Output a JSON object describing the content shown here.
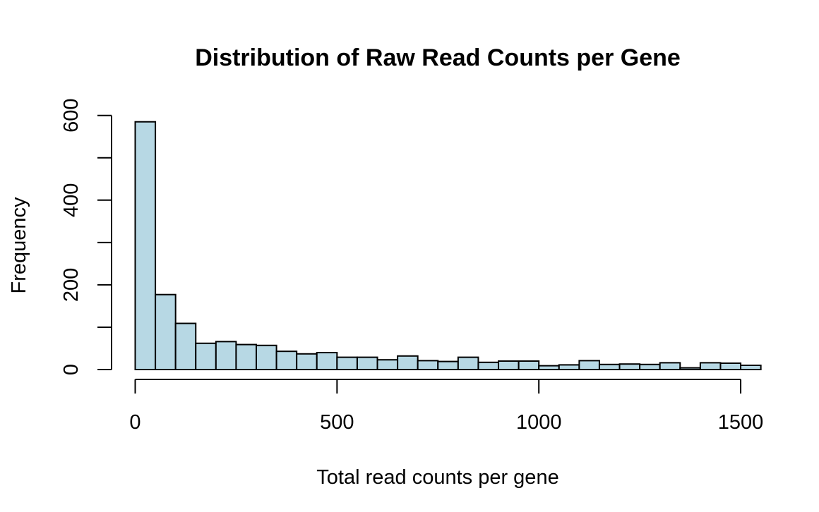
{
  "chart_data": {
    "type": "bar",
    "title": "Distribution of Raw Read Counts per Gene",
    "xlabel": "Total read counts per gene",
    "ylabel": "Frequency",
    "bin_width": 50,
    "x_ticks": [
      0,
      500,
      1000,
      1500
    ],
    "y_ticks": [
      0,
      200,
      400,
      600
    ],
    "xlim": [
      0,
      1550
    ],
    "ylim": [
      0,
      600
    ],
    "grid": false,
    "legend": "none",
    "colors": {
      "bar_fill": "#b7d8e4",
      "bar_stroke": "#000000"
    },
    "bins": [
      {
        "start": 0,
        "end": 50,
        "count": 585
      },
      {
        "start": 50,
        "end": 100,
        "count": 177
      },
      {
        "start": 100,
        "end": 150,
        "count": 109
      },
      {
        "start": 150,
        "end": 200,
        "count": 62
      },
      {
        "start": 200,
        "end": 250,
        "count": 66
      },
      {
        "start": 250,
        "end": 300,
        "count": 59
      },
      {
        "start": 300,
        "end": 350,
        "count": 57
      },
      {
        "start": 350,
        "end": 400,
        "count": 43
      },
      {
        "start": 400,
        "end": 450,
        "count": 37
      },
      {
        "start": 450,
        "end": 500,
        "count": 40
      },
      {
        "start": 500,
        "end": 550,
        "count": 29
      },
      {
        "start": 550,
        "end": 600,
        "count": 29
      },
      {
        "start": 600,
        "end": 650,
        "count": 23
      },
      {
        "start": 650,
        "end": 700,
        "count": 32
      },
      {
        "start": 700,
        "end": 750,
        "count": 21
      },
      {
        "start": 750,
        "end": 800,
        "count": 19
      },
      {
        "start": 800,
        "end": 850,
        "count": 29
      },
      {
        "start": 850,
        "end": 900,
        "count": 17
      },
      {
        "start": 900,
        "end": 950,
        "count": 20
      },
      {
        "start": 950,
        "end": 1000,
        "count": 20
      },
      {
        "start": 1000,
        "end": 1050,
        "count": 9
      },
      {
        "start": 1050,
        "end": 1100,
        "count": 11
      },
      {
        "start": 1100,
        "end": 1150,
        "count": 21
      },
      {
        "start": 1150,
        "end": 1200,
        "count": 12
      },
      {
        "start": 1200,
        "end": 1250,
        "count": 13
      },
      {
        "start": 1250,
        "end": 1300,
        "count": 12
      },
      {
        "start": 1300,
        "end": 1350,
        "count": 16
      },
      {
        "start": 1350,
        "end": 1400,
        "count": 4
      },
      {
        "start": 1400,
        "end": 1450,
        "count": 16
      },
      {
        "start": 1450,
        "end": 1500,
        "count": 15
      },
      {
        "start": 1500,
        "end": 1550,
        "count": 10
      }
    ]
  }
}
